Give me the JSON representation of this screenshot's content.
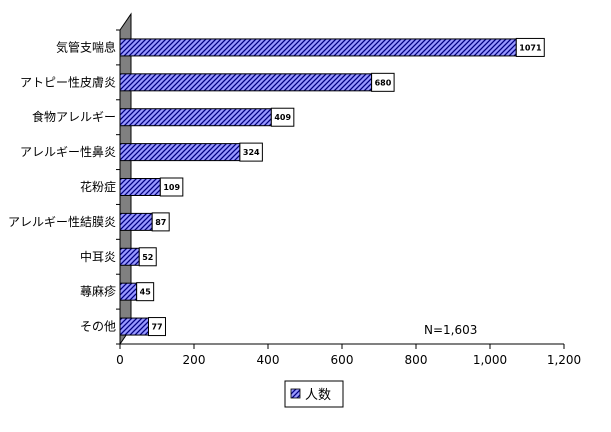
{
  "chart_data": {
    "type": "bar",
    "orientation": "horizontal",
    "categories": [
      "気管支喘息",
      "アトピー性皮膚炎",
      "食物アレルギー",
      "アレルギー性鼻炎",
      "花粉症",
      "アレルギー性結膜炎",
      "中耳炎",
      "蕁麻疹",
      "その他"
    ],
    "series": [
      {
        "name": "人数",
        "values": [
          1071,
          680,
          409,
          324,
          109,
          87,
          52,
          45,
          77
        ]
      }
    ],
    "xticks": [
      "0",
      "200",
      "400",
      "600",
      "800",
      "1,000",
      "1,200"
    ],
    "xlim": [
      0,
      1200
    ],
    "annotation": "N=1,603",
    "legend_position": "bottom",
    "grid": false,
    "colors": {
      "bar_fill": "#9999ff",
      "bar_hatch": "#000080",
      "wall": "#808080"
    }
  }
}
